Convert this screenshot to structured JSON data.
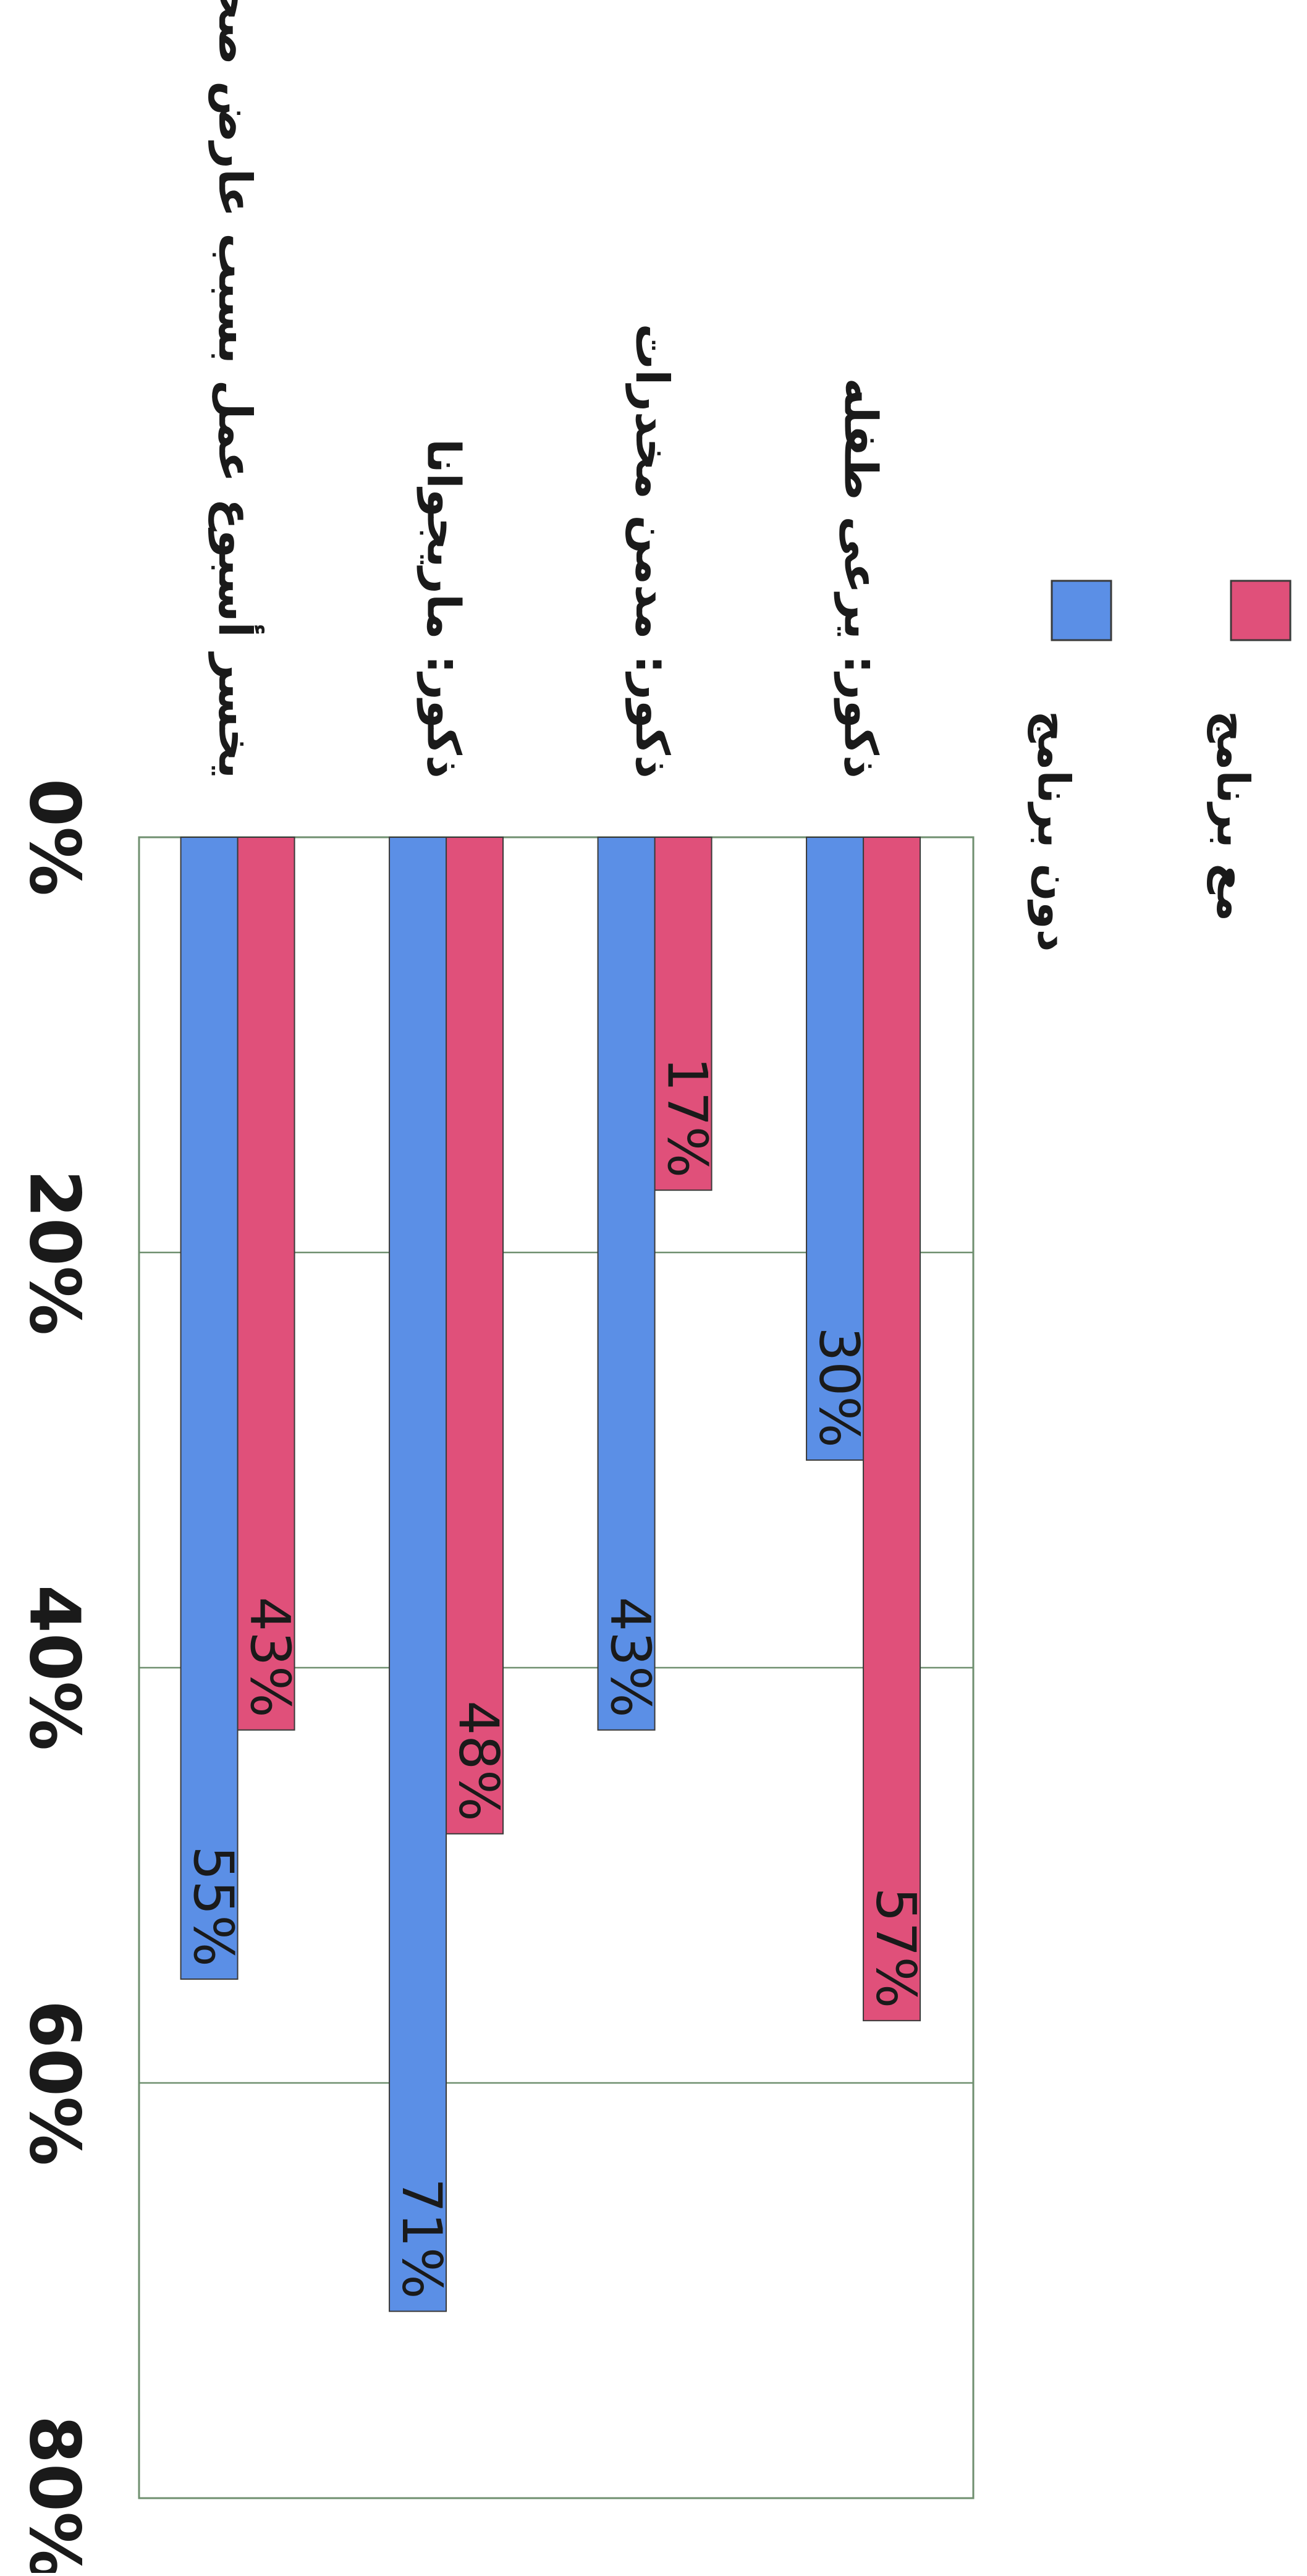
{
  "chart_data": {
    "type": "bar",
    "orientation": "horizontal",
    "categories": [
      "ذكور: يرعى طفله",
      "ذكور: مدمن مخدرات",
      "ذكور: ماريجوانا",
      "يخسر أسبوع عمل بسبب عارض صحي"
    ],
    "series": [
      {
        "name": "مع برنامج",
        "color": "#e0507a",
        "values": [
          57,
          17,
          48,
          43
        ],
        "labels": [
          "57%",
          "17%",
          "48%",
          "43%"
        ]
      },
      {
        "name": "دون برنامج",
        "color": "#5b8fe6",
        "values": [
          30,
          43,
          71,
          55
        ],
        "labels": [
          "30%",
          "43%",
          "71%",
          "55%"
        ]
      }
    ],
    "xlim": [
      0,
      80
    ],
    "ticks": [
      0,
      20,
      40,
      60,
      80
    ],
    "tick_labels": [
      "0%",
      "20%",
      "40%",
      "60%",
      "80%"
    ],
    "grid": true,
    "legend_position": "top",
    "rotation": "rotated 90 degrees clockwise"
  }
}
